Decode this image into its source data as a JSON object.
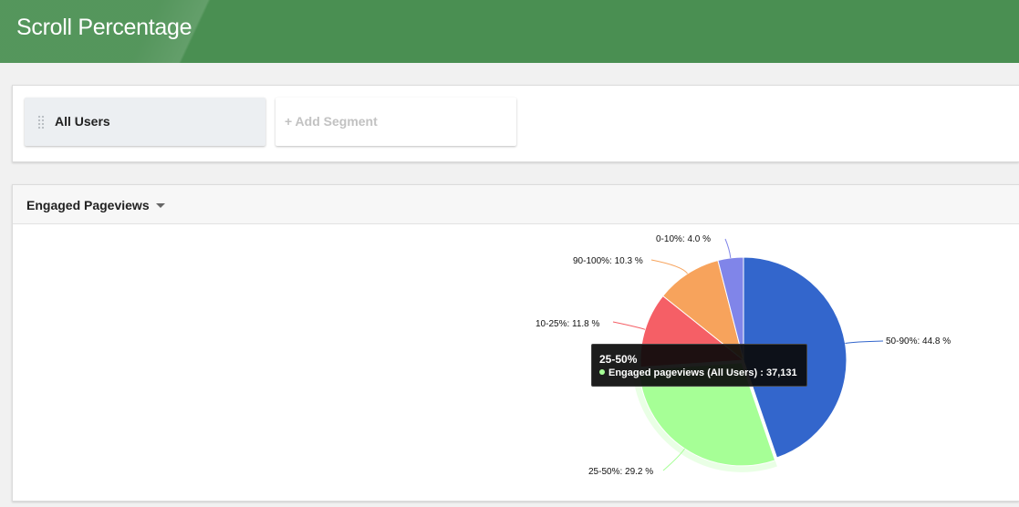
{
  "header": {
    "title": "Scroll Percentage"
  },
  "segments": {
    "active": "All Users",
    "add_label": "+ Add Segment"
  },
  "chart_panel": {
    "metric": "Engaged Pageviews"
  },
  "tooltip": {
    "category": "25-50%",
    "series": "Engaged pageviews (All Users)",
    "value": "37,131"
  },
  "chart_data": {
    "type": "pie",
    "title": "",
    "hovered": "25-50%",
    "slices": [
      {
        "name": "50-90%",
        "value": 44.8,
        "label": "50-90%: 44.8 %",
        "color": "#3366cc"
      },
      {
        "name": "25-50%",
        "value": 29.2,
        "label": "25-50%: 29.2 %",
        "color": "#a6ff96"
      },
      {
        "name": "10-25%",
        "value": 11.8,
        "label": "10-25%: 11.8 %",
        "color": "#f55f66"
      },
      {
        "name": "90-100%",
        "value": 10.3,
        "label": "90-100%: 10.3 %",
        "color": "#f7a35c"
      },
      {
        "name": "0-10%",
        "value": 4.0,
        "label": "0-10%: 4.0 %",
        "color": "#8085e9"
      }
    ]
  }
}
